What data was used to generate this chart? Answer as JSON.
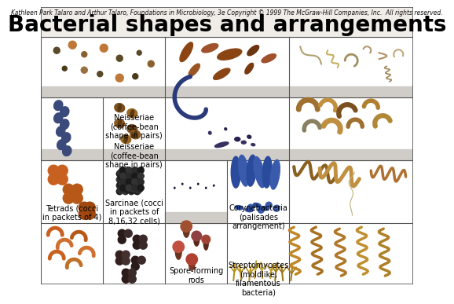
{
  "title": "Bacterial shapes and arrangements",
  "copyright_text": "Kathleen Park Talaro and Arthur Talaro, Foundations in Microbiology, 3e Copyright © 1999 The McGraw-Hill Companies, Inc.  All rights reserved.",
  "bg": "#f0ede8",
  "white": "#ffffff",
  "light_gray": "#d0cdc8",
  "grid_color": "#555555",
  "title_fontsize": 20,
  "copyright_fontsize": 5.5,
  "label_fontsize": 7,
  "R": [
    38,
    115,
    195,
    275,
    353
  ],
  "C1": [
    0,
    158,
    316,
    474
  ],
  "C2": [
    0,
    79,
    158,
    316,
    474
  ],
  "C3": [
    0,
    79,
    158,
    237,
    316,
    474
  ],
  "C4": [
    0,
    79,
    158,
    237,
    316,
    474
  ]
}
